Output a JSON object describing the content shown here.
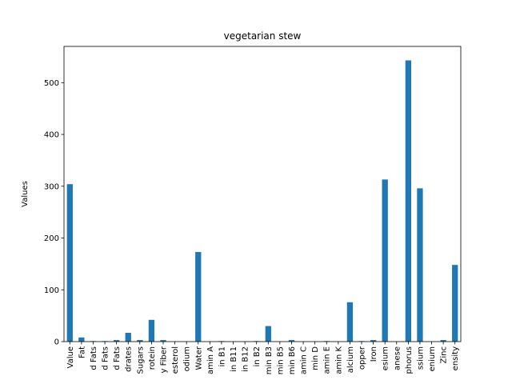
{
  "chart_data": {
    "type": "bar",
    "title": "vegetarian stew",
    "xlabel": "",
    "ylabel": "Values",
    "ylim": [
      0,
      570
    ],
    "yticks": [
      0,
      100,
      200,
      300,
      400,
      500
    ],
    "grid": false,
    "legend": "none",
    "categories": [
      "Value",
      "Fat",
      "d Fats",
      "d Fats",
      "d Fats",
      "drates",
      "Sugars",
      "rotein",
      "y Fiber",
      "esterol",
      "odium",
      "Water",
      "amin A",
      "in B1",
      "in B11",
      "in B12",
      "in B2",
      "min B3",
      "min B5",
      "min B6",
      "amin C",
      "min D",
      "amin E",
      "amin K",
      "alcium",
      "opper",
      "Iron",
      "esium",
      "anese",
      "phorus",
      "ssium",
      "enium",
      "Zinc",
      "ensity"
    ],
    "values": [
      304,
      8,
      1,
      1,
      3,
      17,
      3,
      42,
      3,
      0,
      0,
      173,
      0,
      1,
      0,
      0,
      1,
      30,
      0,
      3,
      0,
      0,
      1,
      0,
      76,
      1,
      3,
      313,
      0,
      543,
      296,
      0,
      3,
      148
    ],
    "colors": {
      "bar": "#1f77b4",
      "axis": "#000000",
      "background": "#ffffff"
    }
  }
}
